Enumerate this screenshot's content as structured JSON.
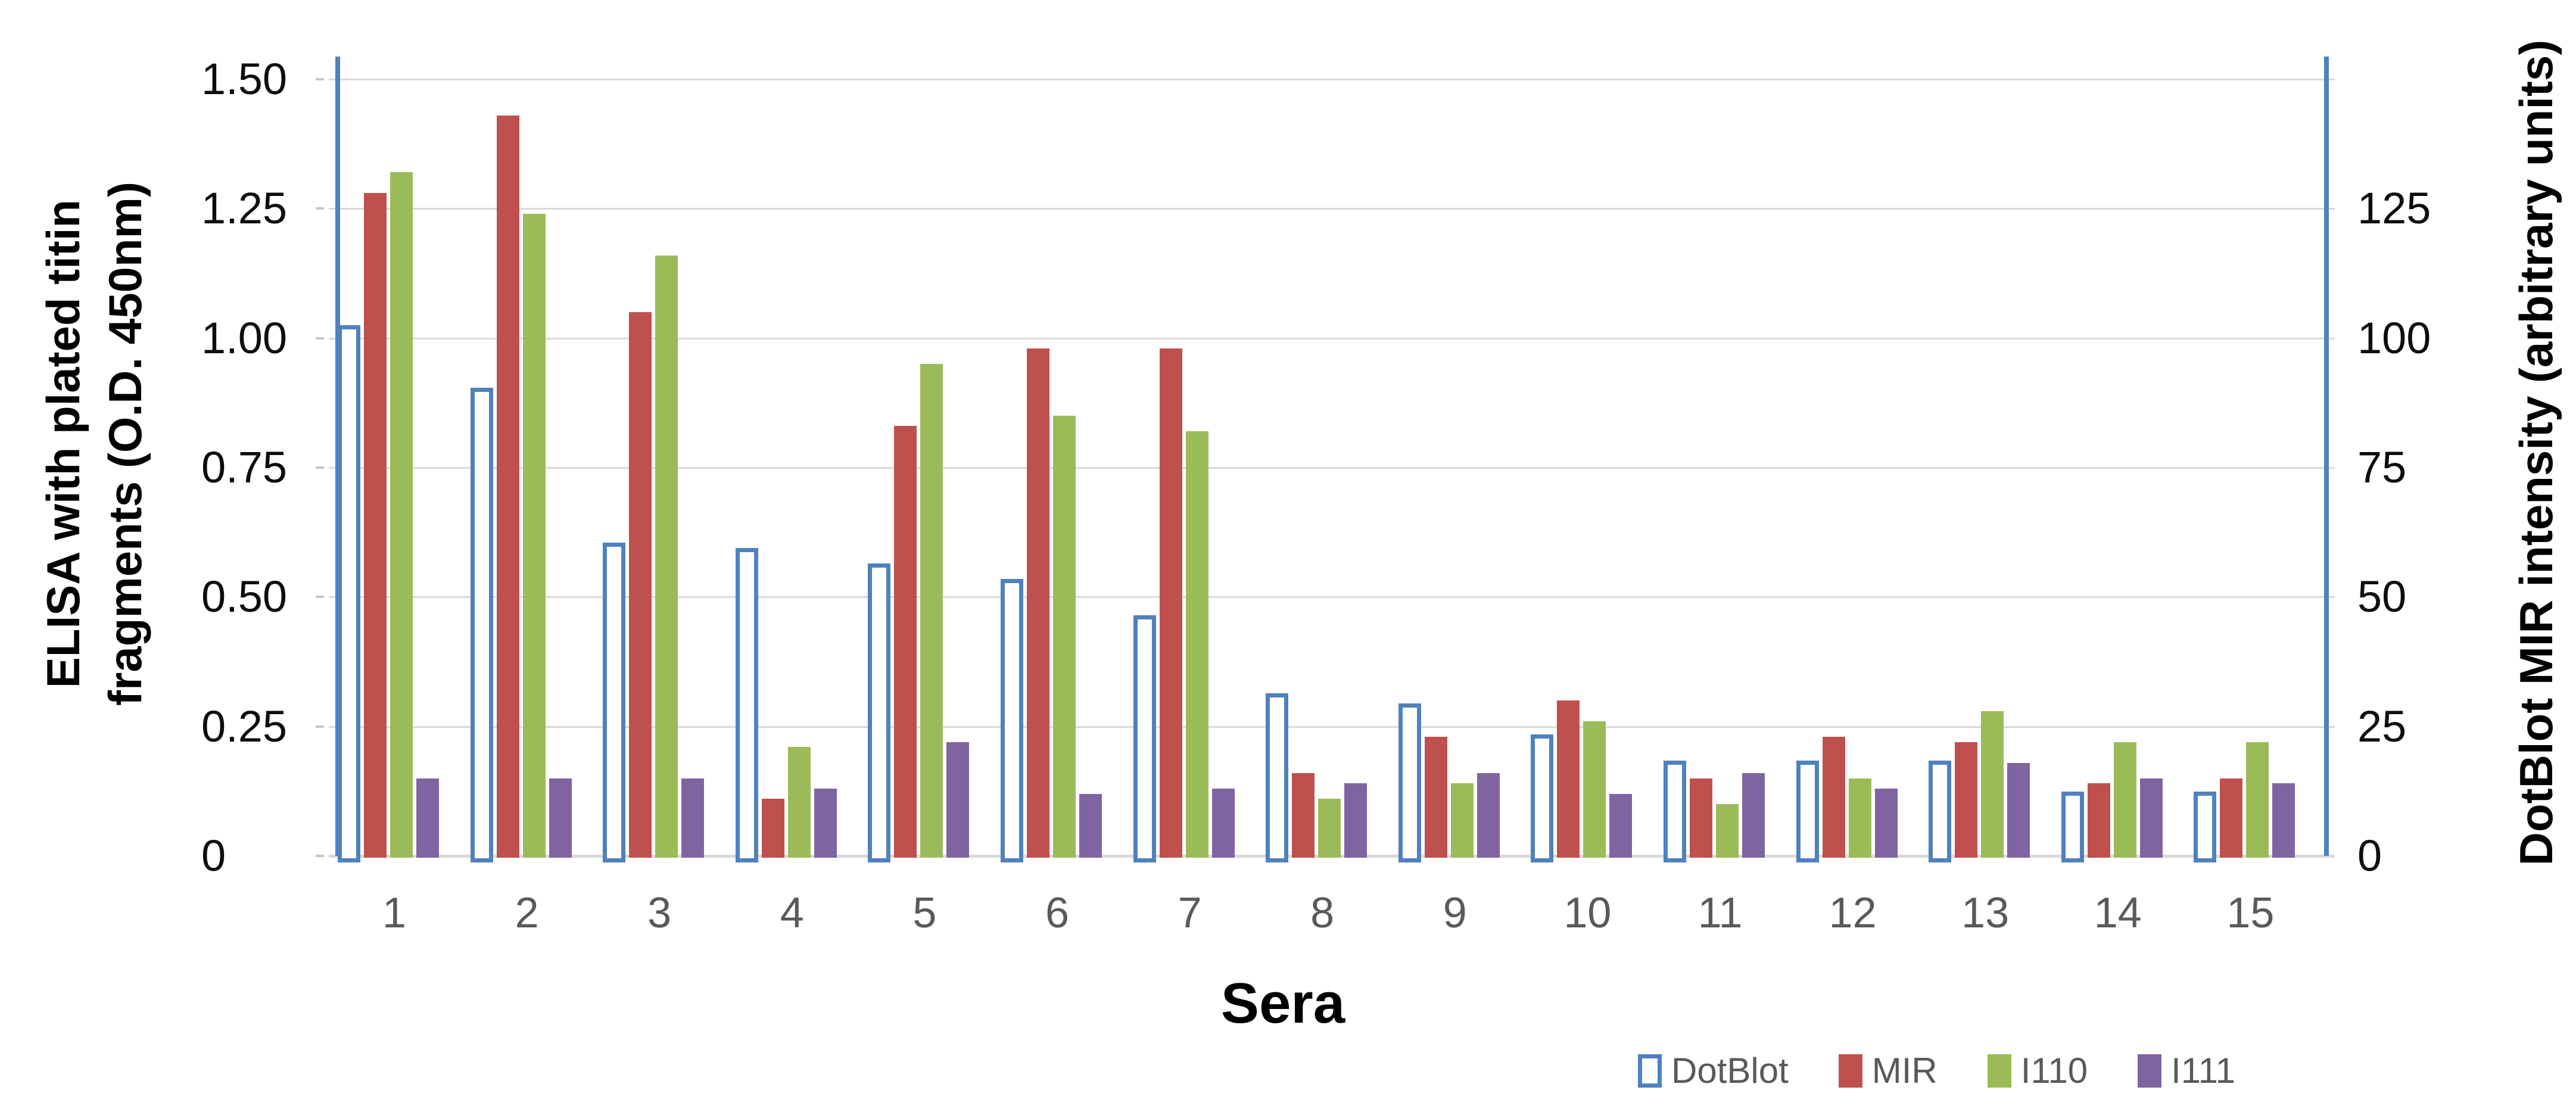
{
  "chart_data": {
    "type": "bar",
    "title": "",
    "categories": [
      "1",
      "2",
      "3",
      "4",
      "5",
      "6",
      "7",
      "8",
      "9",
      "10",
      "11",
      "12",
      "13",
      "14",
      "15"
    ],
    "series": [
      {
        "name": "DotBlot",
        "axis": "right",
        "style": "outlined",
        "color": "#4F81BD",
        "values": [
          102,
          90,
          60,
          59,
          56,
          53,
          46,
          31,
          29,
          23,
          18,
          18,
          18,
          12,
          12
        ]
      },
      {
        "name": "MIR",
        "axis": "left",
        "style": "solid",
        "color": "#C0504D",
        "values": [
          1.28,
          1.43,
          1.05,
          0.11,
          0.83,
          0.98,
          0.98,
          0.16,
          0.23,
          0.3,
          0.15,
          0.23,
          0.22,
          0.14,
          0.15
        ]
      },
      {
        "name": "I110",
        "axis": "left",
        "style": "solid",
        "color": "#9BBB59",
        "values": [
          1.32,
          1.24,
          1.16,
          0.21,
          0.95,
          0.85,
          0.82,
          0.11,
          0.14,
          0.26,
          0.1,
          0.15,
          0.28,
          0.22,
          0.22
        ]
      },
      {
        "name": "I111",
        "axis": "left",
        "style": "solid",
        "color": "#8064A2",
        "values": [
          0.15,
          0.15,
          0.15,
          0.13,
          0.22,
          0.12,
          0.13,
          0.14,
          0.16,
          0.12,
          0.16,
          0.13,
          0.18,
          0.15,
          0.14
        ]
      }
    ],
    "left_axis": {
      "title_line1": "ELISA with plated titin",
      "title_line2": "fragments (O.D. 450nm)",
      "tick_labels": [
        "1.50",
        "1.25",
        "1.00",
        "0.75",
        "0.50",
        "0.25",
        "0"
      ],
      "min": 0,
      "max": 1.5,
      "major_unit": 0.25
    },
    "right_axis": {
      "title": "DotBlot MIR intensity (arbitrary units)",
      "tick_labels": [
        "125",
        "100",
        "75",
        "50",
        "25",
        "0"
      ],
      "min": 0,
      "max": 150,
      "major_unit": 25,
      "top_gridline_unlabeled": true
    },
    "x_axis": {
      "title": "Sera"
    },
    "legend": {
      "position": "bottom-right",
      "entries": [
        "DotBlot",
        "MIR",
        "I110",
        "I111"
      ]
    },
    "layout_hints": {
      "grid": "horizontal-on",
      "gap_between_clusters": true
    },
    "colors": {
      "dotblot_outline": "#4F81BD",
      "mir": "#C0504D",
      "i110": "#9BBB59",
      "i111": "#8064A2",
      "gridline": "#D9D9D9",
      "axis_line": "#4F81BD",
      "tick_label": "#0D0D0D",
      "category_label": "#595959",
      "legend_label": "#595959"
    }
  }
}
